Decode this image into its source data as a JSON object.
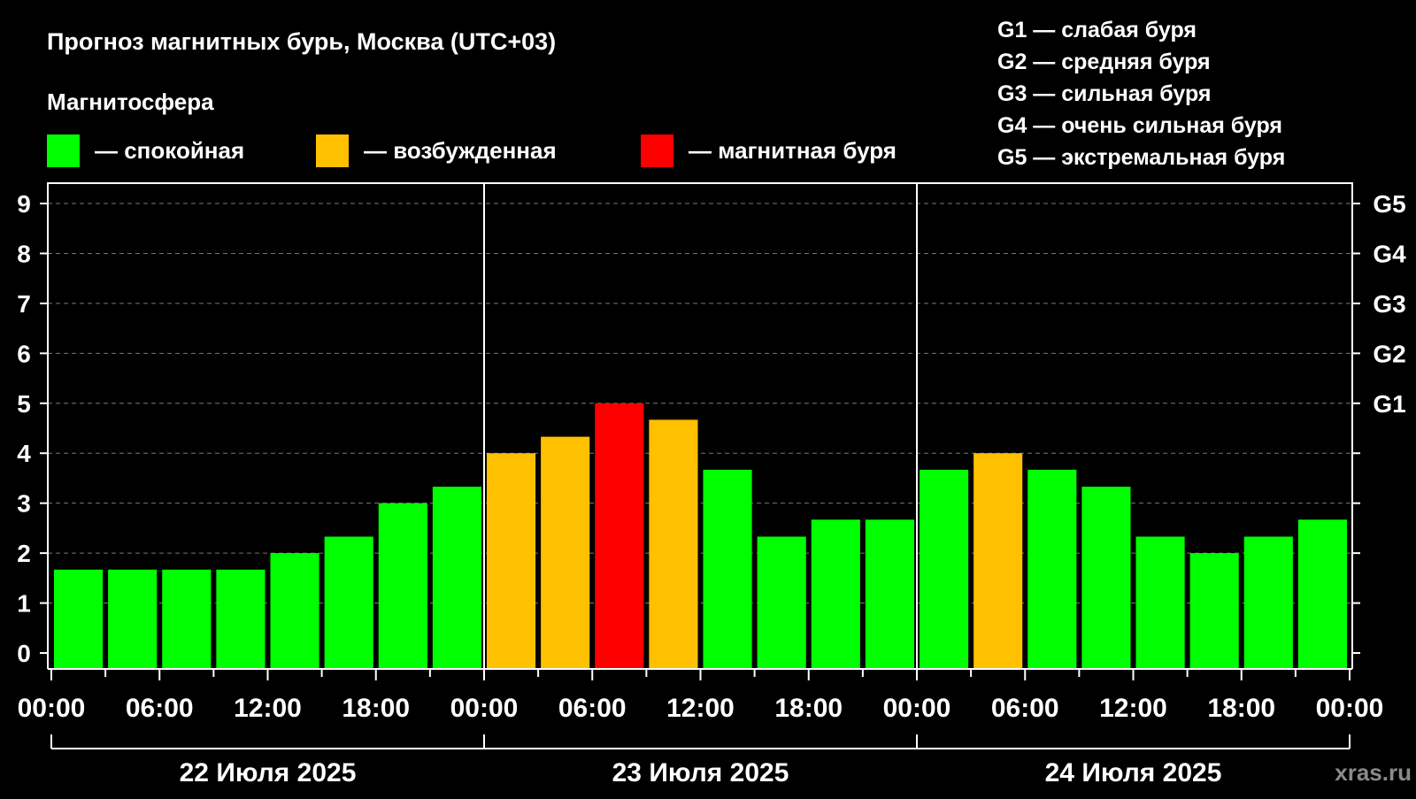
{
  "title": "Прогноз магнитных бурь, Москва (UTC+03)",
  "legend": {
    "heading": "Магнитосфера",
    "items": [
      {
        "label": "— спокойная",
        "color": "#00ff00"
      },
      {
        "label": "— возбужденная",
        "color": "#ffc000"
      },
      {
        "label": "— магнитная буря",
        "color": "#ff0000"
      }
    ]
  },
  "g_legend": [
    "G1 — слабая буря",
    "G2 — средняя буря",
    "G3 — сильная буря",
    "G4 — очень сильная буря",
    "G5 — экстремальная буря"
  ],
  "watermark": "xras.ru",
  "chart_data": {
    "type": "bar",
    "ylim": [
      0,
      9
    ],
    "yticks": [
      "0",
      "1",
      "2",
      "3",
      "4",
      "5",
      "6",
      "7",
      "8",
      "9"
    ],
    "right_ticks": [
      {
        "value": 5,
        "label": "G1"
      },
      {
        "value": 6,
        "label": "G2"
      },
      {
        "value": 7,
        "label": "G3"
      },
      {
        "value": 8,
        "label": "G4"
      },
      {
        "value": 9,
        "label": "G5"
      }
    ],
    "xtick_labels": [
      "00:00",
      "06:00",
      "12:00",
      "18:00",
      "00:00",
      "06:00",
      "12:00",
      "18:00",
      "00:00",
      "06:00",
      "12:00",
      "18:00",
      "00:00"
    ],
    "days": [
      "22 Июля 2025",
      "23 Июля 2025",
      "24 Июля 2025"
    ],
    "interval_hours": 3,
    "grid": "dashed horizontal",
    "values": [
      1.67,
      1.67,
      1.67,
      1.67,
      2,
      2.33,
      3,
      3.33,
      4,
      4.33,
      5,
      4.67,
      3.67,
      2.33,
      2.67,
      2.67,
      3.67,
      4,
      3.67,
      3.33,
      2.33,
      2,
      2.33,
      2.67
    ],
    "levels": [
      "quiet",
      "quiet",
      "quiet",
      "quiet",
      "quiet",
      "quiet",
      "quiet",
      "quiet",
      "excited",
      "excited",
      "storm",
      "excited",
      "quiet",
      "quiet",
      "quiet",
      "quiet",
      "quiet",
      "excited",
      "quiet",
      "quiet",
      "quiet",
      "quiet",
      "quiet",
      "quiet"
    ],
    "colors": {
      "quiet": "#00ff00",
      "excited": "#ffc000",
      "storm": "#ff0000"
    }
  }
}
